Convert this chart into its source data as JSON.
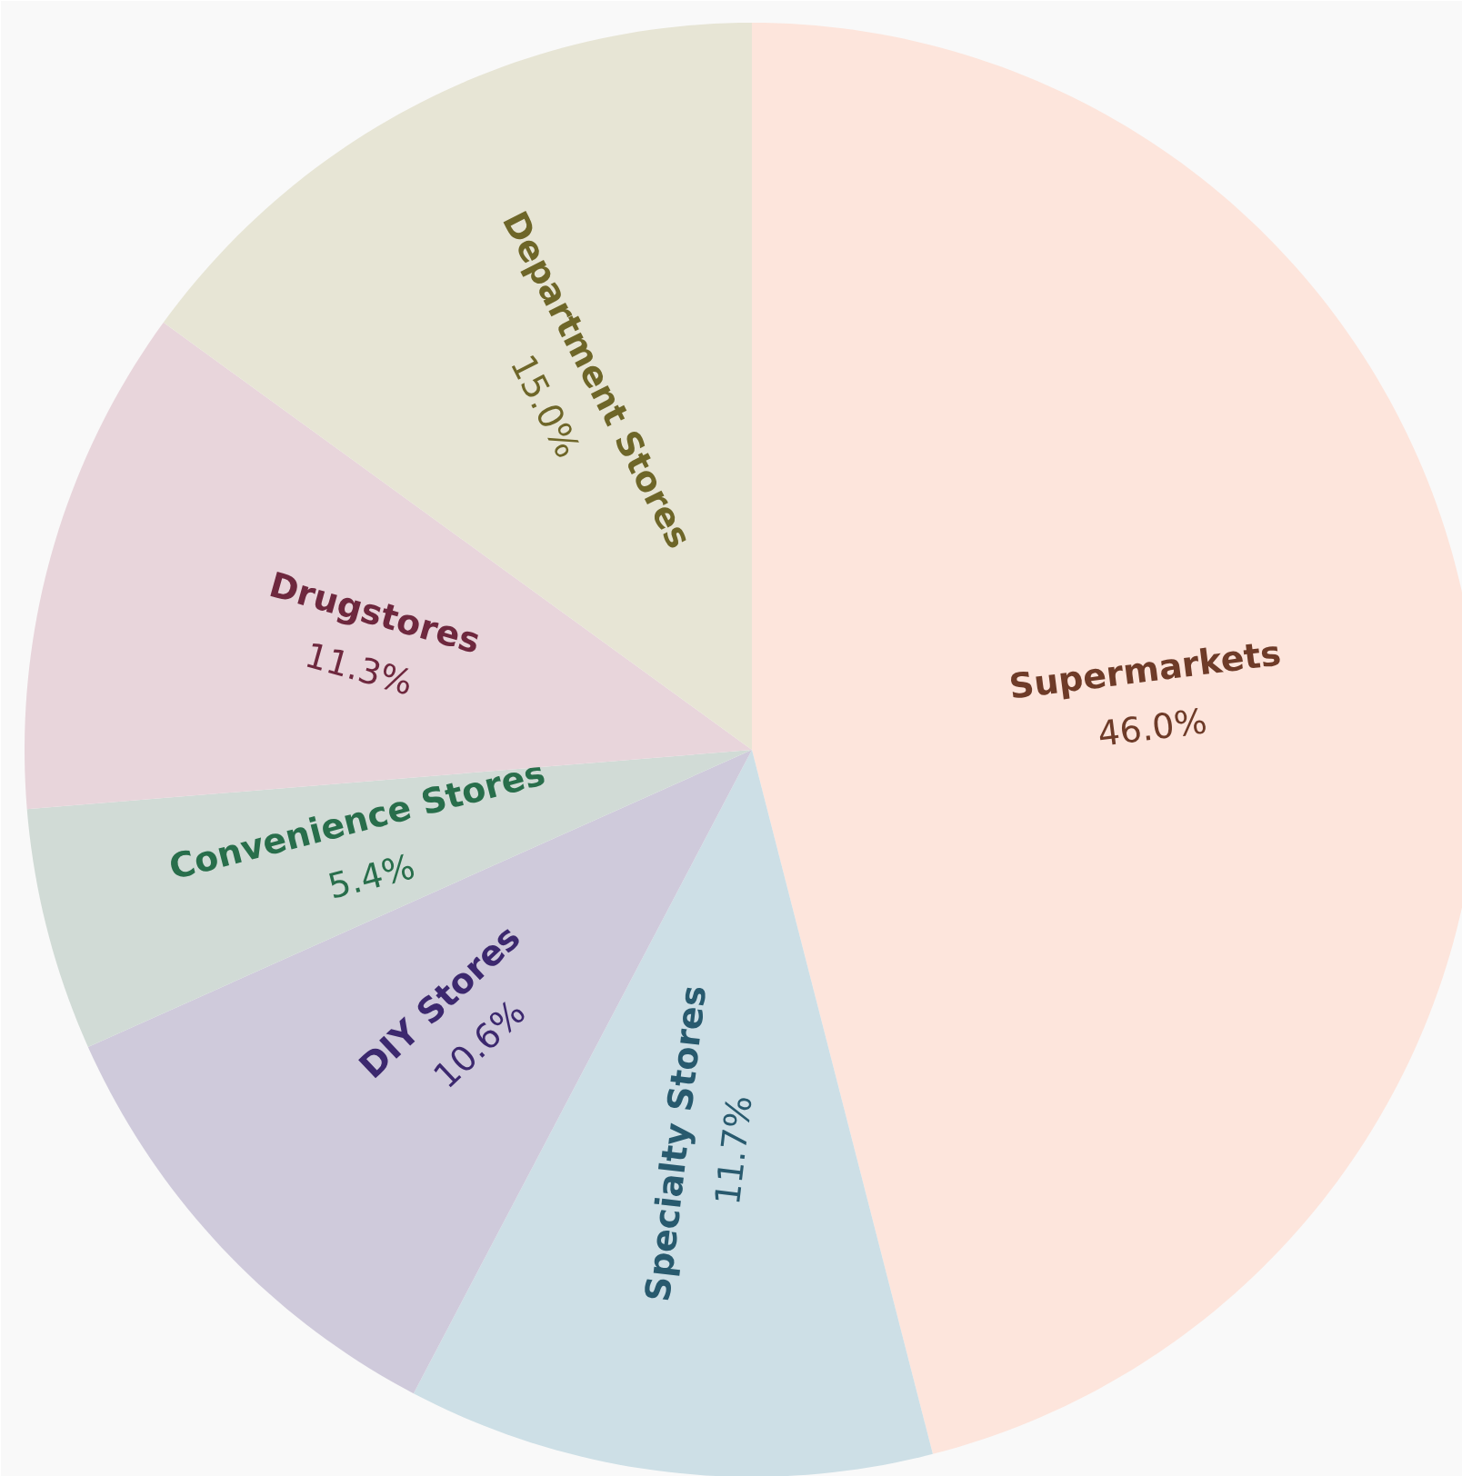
{
  "chart_data": {
    "type": "pie",
    "categories": [
      "Supermarkets",
      "Specialty Stores",
      "DIY Stores",
      "Convenience Stores",
      "Drugstores",
      "Department Stores"
    ],
    "values": [
      46.0,
      11.7,
      10.6,
      5.4,
      11.3,
      15.0
    ],
    "colors": [
      "#fde5dc",
      "#cddfe6",
      "#cfcadb",
      "#d1dbd6",
      "#e8d5db",
      "#e7e5d5"
    ],
    "value_labels": [
      "46.0%",
      "11.7%",
      "10.6%",
      "5.4%",
      "11.3%",
      "15.0%"
    ],
    "legend": false
  }
}
